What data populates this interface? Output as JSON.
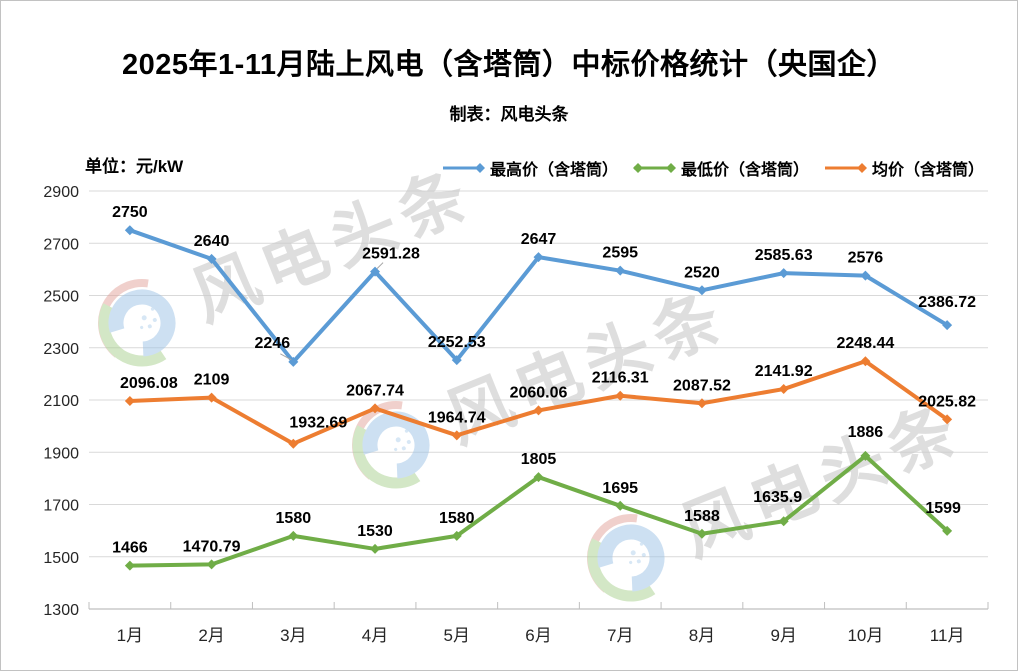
{
  "title": "2025年1-11月陆上风电（含塔筒）中标价格统计（央国企）",
  "subtitle": "制表：风电头条",
  "unit_label": "单位：元/kW",
  "watermark": {
    "text": "风电头条",
    "logo": "wind-headlines-logo"
  },
  "chart_data": {
    "type": "line",
    "categories": [
      "1月",
      "2月",
      "3月",
      "4月",
      "5月",
      "6月",
      "7月",
      "8月",
      "9月",
      "10月",
      "11月"
    ],
    "series": [
      {
        "id": "max",
        "name": "最高价（含塔筒）",
        "color": "#5B9BD5",
        "values": [
          2750,
          2640,
          2246,
          2591.28,
          2252.53,
          2647,
          2595,
          2520,
          2585.63,
          2576,
          2386.72
        ]
      },
      {
        "id": "min",
        "name": "最低价（含塔筒）",
        "color": "#70AD47",
        "values": [
          1466,
          1470.79,
          1580,
          1530,
          1580,
          1805,
          1695,
          1588,
          1635.9,
          1886,
          1599
        ]
      },
      {
        "id": "avg",
        "name": "均价（含塔筒）",
        "color": "#ED7D31",
        "values": [
          2096.08,
          2109,
          1932.69,
          2067.74,
          1964.74,
          2060.06,
          2116.31,
          2087.52,
          2141.92,
          2248.44,
          2025.82
        ]
      }
    ],
    "ylabel": "元/kW",
    "ylim": [
      1300,
      2900
    ],
    "ytick_step": 200,
    "grid": true,
    "legend_position": "top",
    "data_labels": true,
    "colors": {
      "grid": "#D9D9D9",
      "axis": "#BFBFBF",
      "label_text": "#000000",
      "tick_text": "#262626"
    }
  }
}
